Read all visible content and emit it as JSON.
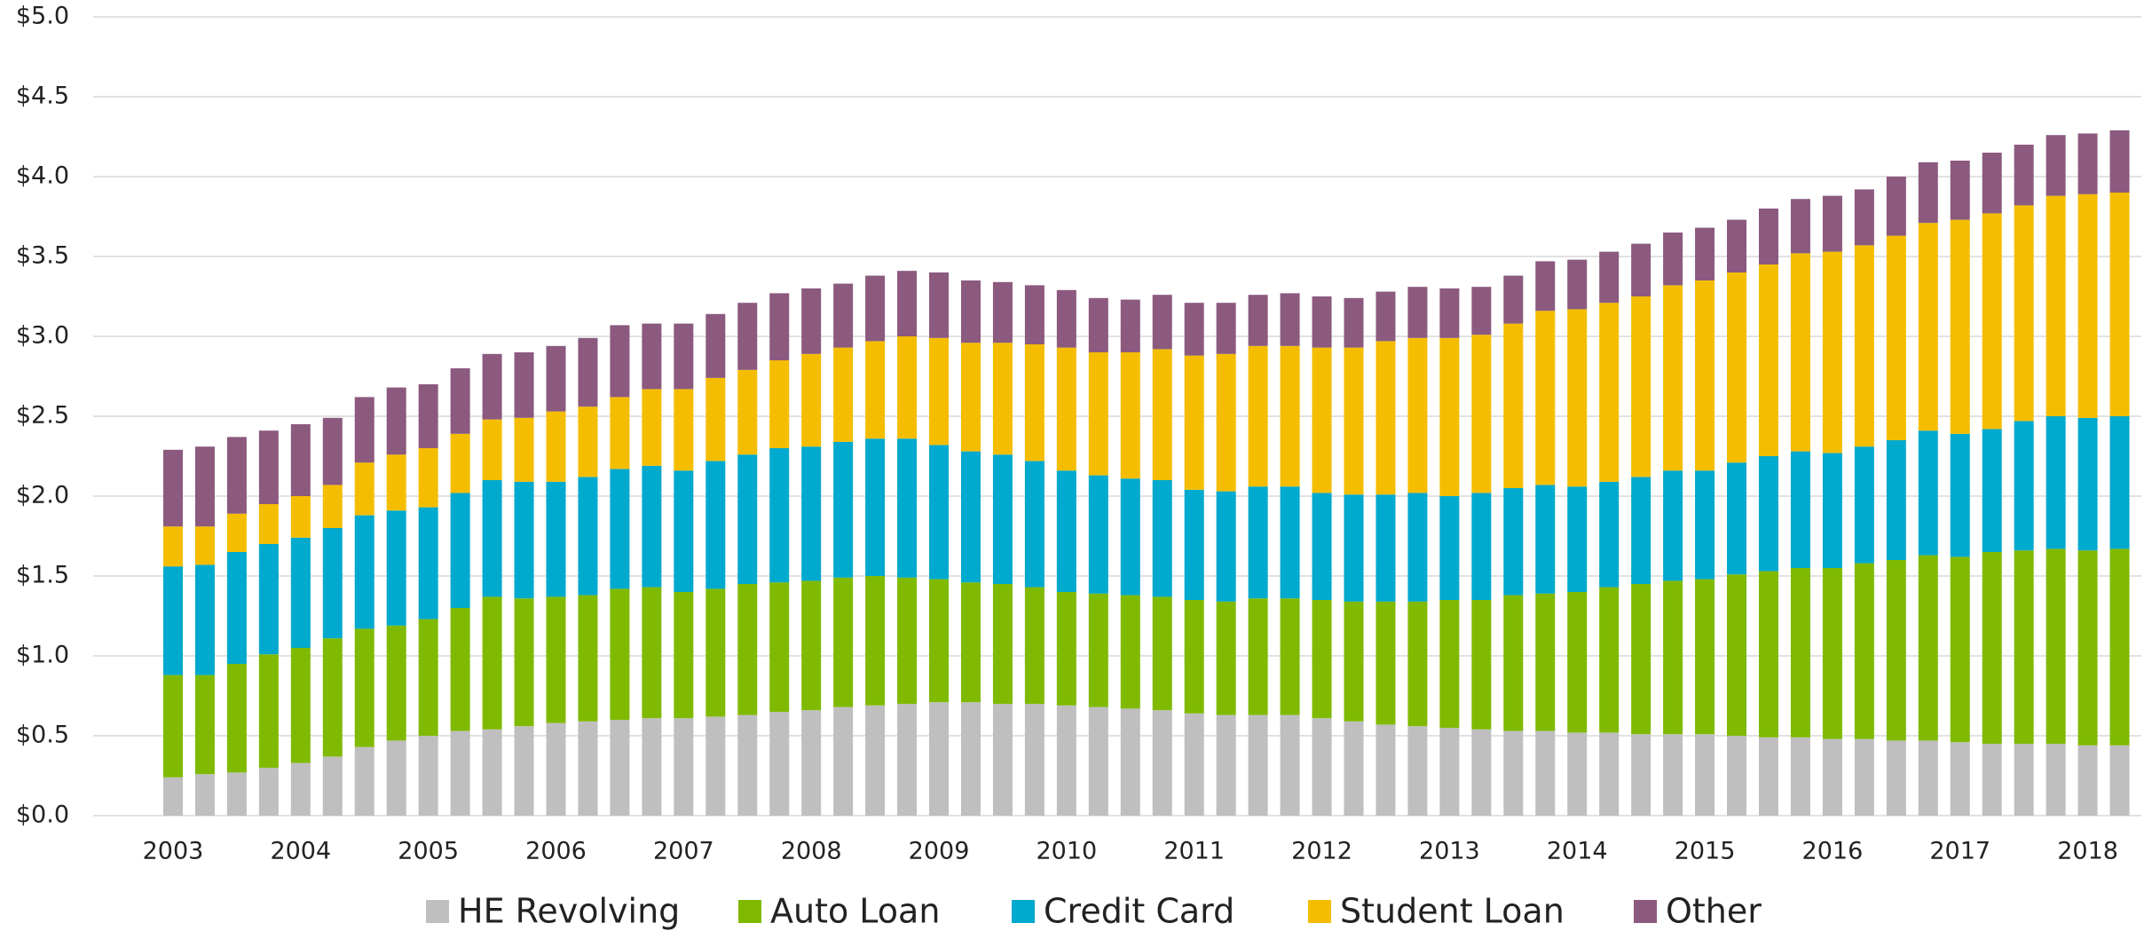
{
  "chart_data": {
    "type": "stacked_bar",
    "categories": [
      "2003",
      null,
      null,
      null,
      "2004",
      null,
      null,
      null,
      "2005",
      null,
      null,
      null,
      "2006",
      null,
      null,
      null,
      "2007",
      null,
      null,
      null,
      "2008",
      null,
      null,
      null,
      "2009",
      null,
      null,
      null,
      "2010",
      null,
      null,
      null,
      "2011",
      null,
      null,
      null,
      "2012",
      null,
      null,
      null,
      "2013",
      null,
      null,
      null,
      "2014",
      null,
      null,
      null,
      "2015",
      null,
      null,
      null,
      "2016",
      null,
      null,
      null,
      "2017",
      null,
      null,
      null,
      "2018",
      null
    ],
    "series": [
      {
        "name": "HE Revolving",
        "color": "#bfbfbf",
        "values": [
          0.24,
          0.26,
          0.27,
          0.3,
          0.33,
          0.37,
          0.43,
          0.47,
          0.5,
          0.53,
          0.54,
          0.56,
          0.58,
          0.59,
          0.6,
          0.61,
          0.61,
          0.62,
          0.63,
          0.65,
          0.66,
          0.68,
          0.69,
          0.7,
          0.71,
          0.71,
          0.7,
          0.7,
          0.69,
          0.68,
          0.67,
          0.66,
          0.64,
          0.63,
          0.63,
          0.63,
          0.61,
          0.59,
          0.57,
          0.56,
          0.55,
          0.54,
          0.53,
          0.53,
          0.52,
          0.52,
          0.51,
          0.51,
          0.51,
          0.5,
          0.49,
          0.49,
          0.48,
          0.48,
          0.47,
          0.47,
          0.46,
          0.45,
          0.45,
          0.45,
          0.44,
          0.44
        ]
      },
      {
        "name": "Auto Loan",
        "color": "#7fba00",
        "values": [
          0.64,
          0.62,
          0.68,
          0.71,
          0.72,
          0.74,
          0.74,
          0.72,
          0.73,
          0.77,
          0.83,
          0.8,
          0.79,
          0.79,
          0.82,
          0.82,
          0.79,
          0.8,
          0.82,
          0.81,
          0.81,
          0.81,
          0.81,
          0.79,
          0.77,
          0.75,
          0.75,
          0.73,
          0.71,
          0.71,
          0.71,
          0.71,
          0.71,
          0.71,
          0.73,
          0.73,
          0.74,
          0.75,
          0.77,
          0.78,
          0.8,
          0.81,
          0.85,
          0.86,
          0.88,
          0.91,
          0.94,
          0.96,
          0.97,
          1.01,
          1.04,
          1.06,
          1.07,
          1.1,
          1.13,
          1.16,
          1.16,
          1.2,
          1.21,
          1.22,
          1.22,
          1.23
        ]
      },
      {
        "name": "Credit Card",
        "color": "#00a9ce",
        "values": [
          0.68,
          0.69,
          0.7,
          0.69,
          0.69,
          0.69,
          0.71,
          0.72,
          0.7,
          0.72,
          0.73,
          0.73,
          0.72,
          0.74,
          0.75,
          0.76,
          0.76,
          0.8,
          0.81,
          0.84,
          0.84,
          0.85,
          0.86,
          0.87,
          0.84,
          0.82,
          0.81,
          0.79,
          0.76,
          0.74,
          0.73,
          0.73,
          0.69,
          0.69,
          0.7,
          0.7,
          0.67,
          0.67,
          0.67,
          0.68,
          0.65,
          0.67,
          0.67,
          0.68,
          0.66,
          0.66,
          0.67,
          0.69,
          0.68,
          0.7,
          0.72,
          0.73,
          0.72,
          0.73,
          0.75,
          0.78,
          0.77,
          0.77,
          0.81,
          0.83,
          0.83,
          0.83
        ]
      },
      {
        "name": "Student Loan",
        "color": "#f5bd00",
        "values": [
          0.25,
          0.24,
          0.24,
          0.25,
          0.26,
          0.27,
          0.33,
          0.35,
          0.37,
          0.37,
          0.38,
          0.4,
          0.44,
          0.44,
          0.45,
          0.48,
          0.51,
          0.52,
          0.53,
          0.55,
          0.58,
          0.59,
          0.61,
          0.64,
          0.67,
          0.68,
          0.7,
          0.73,
          0.77,
          0.77,
          0.79,
          0.82,
          0.84,
          0.86,
          0.88,
          0.88,
          0.91,
          0.92,
          0.96,
          0.97,
          0.99,
          0.99,
          1.03,
          1.09,
          1.11,
          1.12,
          1.13,
          1.16,
          1.19,
          1.19,
          1.2,
          1.24,
          1.26,
          1.26,
          1.28,
          1.3,
          1.34,
          1.35,
          1.35,
          1.38,
          1.4,
          1.4
        ]
      },
      {
        "name": "Other",
        "color": "#8b5a7e",
        "values": [
          0.48,
          0.5,
          0.48,
          0.46,
          0.45,
          0.42,
          0.41,
          0.42,
          0.4,
          0.41,
          0.41,
          0.41,
          0.41,
          0.43,
          0.45,
          0.41,
          0.41,
          0.4,
          0.42,
          0.42,
          0.41,
          0.4,
          0.41,
          0.41,
          0.41,
          0.39,
          0.38,
          0.37,
          0.36,
          0.34,
          0.33,
          0.34,
          0.33,
          0.32,
          0.32,
          0.33,
          0.32,
          0.31,
          0.31,
          0.32,
          0.31,
          0.3,
          0.3,
          0.31,
          0.31,
          0.32,
          0.33,
          0.33,
          0.33,
          0.33,
          0.35,
          0.34,
          0.35,
          0.35,
          0.37,
          0.38,
          0.37,
          0.38,
          0.38,
          0.38,
          0.38,
          0.39
        ]
      }
    ],
    "ylim": [
      0,
      5
    ],
    "yticks": [
      {
        "value": 0,
        "label": "$0.0"
      },
      {
        "value": 0.5,
        "label": "$0.5"
      },
      {
        "value": 1,
        "label": "$1.0"
      },
      {
        "value": 1.5,
        "label": "$1.5"
      },
      {
        "value": 2,
        "label": "$2.0"
      },
      {
        "value": 2.5,
        "label": "$2.5"
      },
      {
        "value": 3,
        "label": "$3.0"
      },
      {
        "value": 3.5,
        "label": "$3.5"
      },
      {
        "value": 4,
        "label": "$4.0"
      },
      {
        "value": 4.5,
        "label": "$4.5"
      },
      {
        "value": 5,
        "label": "$5.0"
      }
    ],
    "grid": true,
    "legend": "bottom"
  }
}
